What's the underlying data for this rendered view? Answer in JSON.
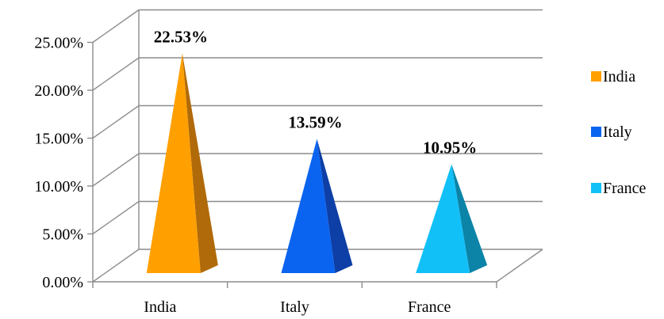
{
  "chart_data": {
    "type": "bar",
    "style": "3d-pyramid",
    "categories": [
      "India",
      "Italy",
      "France"
    ],
    "values": [
      22.53,
      13.59,
      10.95
    ],
    "data_labels": [
      "22.53%",
      "13.59%",
      "10.95%"
    ],
    "y_ticks": [
      {
        "value": 0,
        "label": "0.00%"
      },
      {
        "value": 5,
        "label": "5.00%"
      },
      {
        "value": 10,
        "label": "10.00%"
      },
      {
        "value": 15,
        "label": "15.00%"
      },
      {
        "value": 20,
        "label": "20.00%"
      },
      {
        "value": 25,
        "label": "25.00%"
      }
    ],
    "ylim": [
      0,
      25
    ],
    "grid": true,
    "legend": {
      "position": "right",
      "entries": [
        "India",
        "Italy",
        "France"
      ]
    },
    "colors": [
      "#FFA000",
      "#0A64F0",
      "#12C0F8"
    ],
    "side_colors": [
      "#B06A0A",
      "#0D3FA6",
      "#0C84A8"
    ],
    "title": "",
    "xlabel": "",
    "ylabel": ""
  }
}
